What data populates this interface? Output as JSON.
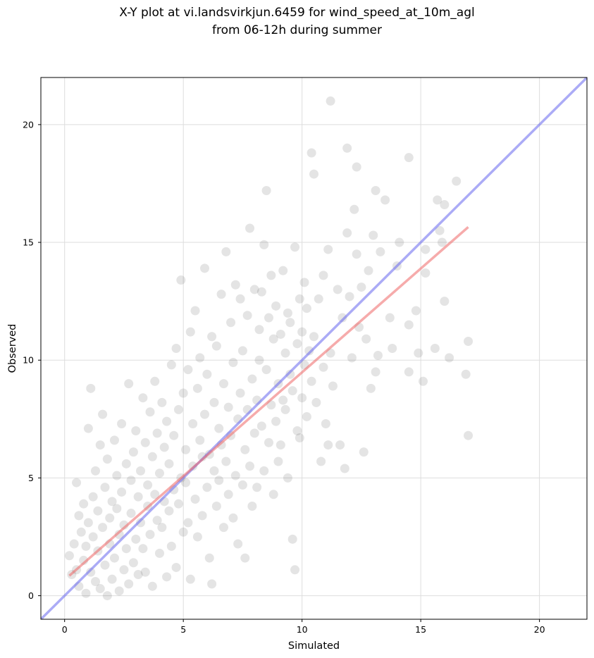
{
  "chart_data": {
    "type": "scatter",
    "title_lines": [
      "X-Y plot at vi.landsvirkjun.6459 for wind_speed_at_10m_agl",
      "from 06-12h during summer"
    ],
    "xlabel": "Simulated",
    "ylabel": "Observed",
    "xlim": [
      -1,
      22
    ],
    "ylim": [
      -1,
      22
    ],
    "x_ticks": [
      0,
      5,
      10,
      15,
      20
    ],
    "y_ticks": [
      0,
      5,
      10,
      15,
      20
    ],
    "grid": true,
    "legend": "none",
    "colors": {
      "points": "#555555",
      "identity_line": "#6666ee",
      "regression_line": "#ee6666",
      "grid": "#dddddd"
    },
    "identity_line": {
      "x": [
        -1,
        22
      ],
      "y": [
        -1,
        22
      ]
    },
    "regression_line": {
      "x": [
        0.2,
        17.0
      ],
      "y": [
        0.85,
        15.65
      ]
    },
    "points": [
      [
        0.2,
        1.7
      ],
      [
        0.3,
        0.9
      ],
      [
        0.4,
        2.2
      ],
      [
        0.5,
        4.8
      ],
      [
        0.5,
        1.1
      ],
      [
        0.6,
        3.4
      ],
      [
        0.6,
        0.4
      ],
      [
        0.7,
        2.7
      ],
      [
        0.8,
        1.5
      ],
      [
        0.8,
        3.9
      ],
      [
        0.9,
        0.1
      ],
      [
        0.9,
        2.1
      ],
      [
        1.0,
        7.1
      ],
      [
        1.0,
        3.1
      ],
      [
        1.1,
        8.8
      ],
      [
        1.1,
        1.0
      ],
      [
        1.2,
        4.2
      ],
      [
        1.2,
        2.5
      ],
      [
        1.3,
        0.6
      ],
      [
        1.3,
        5.3
      ],
      [
        1.4,
        1.9
      ],
      [
        1.4,
        3.6
      ],
      [
        1.5,
        6.4
      ],
      [
        1.5,
        0.3
      ],
      [
        1.6,
        7.7
      ],
      [
        1.6,
        2.9
      ],
      [
        1.7,
        4.6
      ],
      [
        1.7,
        1.3
      ],
      [
        1.8,
        5.8
      ],
      [
        1.8,
        0.0
      ],
      [
        1.9,
        3.3
      ],
      [
        1.9,
        2.2
      ],
      [
        2.0,
        4.0
      ],
      [
        2.0,
        0.7
      ],
      [
        2.1,
        6.6
      ],
      [
        2.1,
        1.6
      ],
      [
        2.2,
        3.7
      ],
      [
        2.2,
        5.1
      ],
      [
        2.3,
        2.6
      ],
      [
        2.3,
        0.2
      ],
      [
        2.4,
        7.3
      ],
      [
        2.4,
        4.4
      ],
      [
        2.5,
        1.1
      ],
      [
        2.5,
        3.0
      ],
      [
        2.6,
        5.6
      ],
      [
        2.6,
        2.0
      ],
      [
        2.7,
        9.0
      ],
      [
        2.7,
        0.5
      ],
      [
        2.8,
        4.9
      ],
      [
        2.8,
        3.5
      ],
      [
        2.9,
        6.1
      ],
      [
        2.9,
        1.4
      ],
      [
        3.0,
        2.4
      ],
      [
        3.0,
        7.0
      ],
      [
        3.1,
        4.2
      ],
      [
        3.1,
        0.9
      ],
      [
        3.2,
        5.3
      ],
      [
        3.2,
        3.1
      ],
      [
        3.3,
        8.4
      ],
      [
        3.3,
        2.0
      ],
      [
        3.4,
        6.5
      ],
      [
        3.4,
        1.0
      ],
      [
        3.5,
        4.7
      ],
      [
        3.5,
        3.8
      ],
      [
        3.6,
        7.8
      ],
      [
        3.6,
        2.6
      ],
      [
        3.7,
        5.9
      ],
      [
        3.7,
        0.4
      ],
      [
        3.8,
        4.3
      ],
      [
        3.8,
        9.1
      ],
      [
        3.9,
        3.2
      ],
      [
        3.9,
        6.9
      ],
      [
        4.0,
        1.8
      ],
      [
        4.0,
        5.2
      ],
      [
        4.1,
        8.2
      ],
      [
        4.1,
        2.9
      ],
      [
        4.2,
        4.0
      ],
      [
        4.2,
        6.3
      ],
      [
        4.3,
        0.8
      ],
      [
        4.3,
        7.4
      ],
      [
        4.4,
        3.6
      ],
      [
        4.4,
        5.6
      ],
      [
        4.5,
        9.8
      ],
      [
        4.5,
        2.1
      ],
      [
        4.6,
        6.8
      ],
      [
        4.6,
        4.5
      ],
      [
        4.7,
        10.5
      ],
      [
        4.7,
        1.2
      ],
      [
        4.8,
        3.9
      ],
      [
        4.8,
        7.9
      ],
      [
        4.9,
        13.4
      ],
      [
        4.9,
        5.0
      ],
      [
        5.0,
        2.7
      ],
      [
        5.0,
        8.6
      ],
      [
        5.1,
        4.8
      ],
      [
        5.1,
        6.2
      ],
      [
        5.2,
        3.1
      ],
      [
        5.2,
        9.6
      ],
      [
        5.3,
        11.2
      ],
      [
        5.3,
        0.7
      ],
      [
        5.4,
        5.5
      ],
      [
        5.4,
        7.3
      ],
      [
        5.5,
        12.1
      ],
      [
        5.5,
        4.1
      ],
      [
        5.6,
        8.8
      ],
      [
        5.6,
        2.5
      ],
      [
        5.7,
        6.6
      ],
      [
        5.7,
        10.1
      ],
      [
        5.8,
        3.4
      ],
      [
        5.8,
        5.9
      ],
      [
        5.9,
        13.9
      ],
      [
        5.9,
        7.7
      ],
      [
        6.0,
        4.6
      ],
      [
        6.0,
        9.4
      ],
      [
        6.1,
        1.6
      ],
      [
        6.1,
        6.0
      ],
      [
        6.2,
        11.0
      ],
      [
        6.2,
        0.5
      ],
      [
        6.3,
        5.3
      ],
      [
        6.3,
        8.2
      ],
      [
        6.4,
        3.8
      ],
      [
        6.4,
        10.6
      ],
      [
        6.5,
        7.1
      ],
      [
        6.5,
        4.9
      ],
      [
        6.6,
        12.8
      ],
      [
        6.6,
        6.4
      ],
      [
        6.7,
        2.9
      ],
      [
        6.7,
        9.0
      ],
      [
        6.8,
        5.7
      ],
      [
        6.8,
        14.6
      ],
      [
        6.9,
        8.0
      ],
      [
        6.9,
        4.3
      ],
      [
        7.0,
        11.6
      ],
      [
        7.0,
        6.8
      ],
      [
        7.1,
        3.3
      ],
      [
        7.1,
        9.9
      ],
      [
        7.2,
        13.2
      ],
      [
        7.2,
        5.1
      ],
      [
        7.3,
        7.5
      ],
      [
        7.3,
        2.2
      ],
      [
        7.4,
        12.6
      ],
      [
        7.4,
        8.6
      ],
      [
        7.5,
        4.7
      ],
      [
        7.5,
        10.4
      ],
      [
        7.6,
        6.2
      ],
      [
        7.6,
        1.6
      ],
      [
        7.7,
        11.9
      ],
      [
        7.7,
        7.9
      ],
      [
        7.8,
        15.6
      ],
      [
        7.8,
        5.5
      ],
      [
        7.9,
        9.2
      ],
      [
        7.9,
        3.8
      ],
      [
        8.0,
        13.0
      ],
      [
        8.0,
        6.9
      ],
      [
        8.1,
        8.3
      ],
      [
        8.1,
        4.6
      ],
      [
        8.2,
        11.3
      ],
      [
        8.2,
        10.0
      ],
      [
        8.3,
        12.9
      ],
      [
        8.3,
        7.2
      ],
      [
        8.4,
        14.9
      ],
      [
        8.4,
        5.3
      ],
      [
        8.5,
        17.2
      ],
      [
        8.5,
        9.6
      ],
      [
        8.6,
        11.8
      ],
      [
        8.6,
        6.5
      ],
      [
        8.7,
        8.1
      ],
      [
        8.7,
        13.6
      ],
      [
        8.8,
        4.3
      ],
      [
        8.8,
        10.9
      ],
      [
        8.9,
        7.4
      ],
      [
        8.9,
        12.3
      ],
      [
        9.0,
        9.0
      ],
      [
        9.0,
        5.7
      ],
      [
        9.1,
        11.1
      ],
      [
        9.1,
        6.4
      ],
      [
        9.2,
        8.3
      ],
      [
        9.2,
        13.8
      ],
      [
        9.3,
        10.3
      ],
      [
        9.3,
        7.9
      ],
      [
        9.4,
        12.0
      ],
      [
        9.4,
        5.0
      ],
      [
        9.5,
        9.4
      ],
      [
        9.5,
        11.6
      ],
      [
        9.6,
        2.4
      ],
      [
        9.6,
        8.7
      ],
      [
        9.7,
        14.8
      ],
      [
        9.7,
        1.1
      ],
      [
        9.8,
        10.7
      ],
      [
        9.8,
        7.0
      ],
      [
        9.9,
        12.6
      ],
      [
        9.9,
        6.7
      ],
      [
        10.0,
        11.2
      ],
      [
        10.0,
        8.4
      ],
      [
        10.1,
        13.3
      ],
      [
        10.1,
        9.8
      ],
      [
        10.2,
        12.2
      ],
      [
        10.2,
        7.6
      ],
      [
        10.3,
        10.4
      ],
      [
        10.4,
        18.8
      ],
      [
        10.4,
        9.1
      ],
      [
        10.5,
        17.9
      ],
      [
        10.5,
        11.0
      ],
      [
        10.6,
        8.2
      ],
      [
        10.7,
        12.6
      ],
      [
        10.8,
        5.7
      ],
      [
        10.9,
        13.6
      ],
      [
        10.9,
        9.7
      ],
      [
        11.0,
        7.3
      ],
      [
        11.1,
        14.7
      ],
      [
        11.1,
        6.4
      ],
      [
        11.2,
        21.0
      ],
      [
        11.2,
        10.3
      ],
      [
        11.3,
        8.9
      ],
      [
        11.5,
        13.0
      ],
      [
        11.6,
        6.4
      ],
      [
        11.7,
        11.8
      ],
      [
        11.8,
        5.4
      ],
      [
        11.9,
        19.0
      ],
      [
        11.9,
        15.4
      ],
      [
        12.0,
        12.7
      ],
      [
        12.1,
        10.1
      ],
      [
        12.2,
        16.4
      ],
      [
        12.3,
        18.2
      ],
      [
        12.3,
        14.5
      ],
      [
        12.4,
        11.4
      ],
      [
        12.5,
        13.1
      ],
      [
        12.6,
        6.1
      ],
      [
        12.7,
        10.9
      ],
      [
        12.8,
        13.8
      ],
      [
        12.9,
        8.8
      ],
      [
        13.0,
        15.3
      ],
      [
        13.1,
        17.2
      ],
      [
        13.1,
        9.5
      ],
      [
        13.2,
        10.2
      ],
      [
        13.3,
        14.6
      ],
      [
        13.5,
        16.8
      ],
      [
        13.7,
        11.8
      ],
      [
        13.8,
        10.5
      ],
      [
        14.1,
        15.0
      ],
      [
        14.5,
        18.6
      ],
      [
        14.5,
        9.5
      ],
      [
        14.5,
        11.5
      ],
      [
        14.8,
        12.1
      ],
      [
        14.9,
        10.3
      ],
      [
        15.1,
        9.1
      ],
      [
        15.2,
        13.7
      ],
      [
        15.2,
        14.7
      ],
      [
        15.6,
        10.5
      ],
      [
        15.7,
        16.8
      ],
      [
        15.8,
        15.5
      ],
      [
        16.0,
        16.6
      ],
      [
        16.0,
        12.5
      ],
      [
        16.2,
        10.1
      ],
      [
        16.5,
        17.6
      ],
      [
        16.9,
        9.4
      ],
      [
        17.0,
        6.8
      ],
      [
        17.0,
        10.8
      ],
      [
        15.9,
        15.0
      ],
      [
        14.0,
        14.0
      ]
    ]
  }
}
